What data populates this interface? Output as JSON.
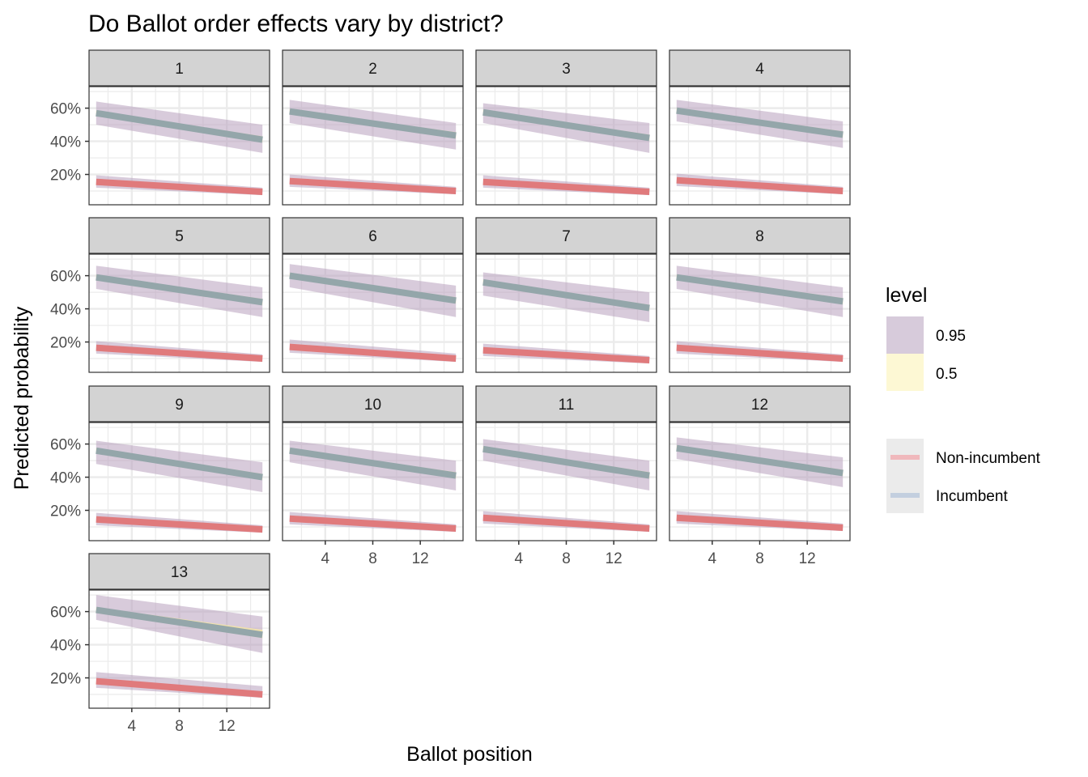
{
  "chart_data": {
    "type": "line",
    "title": "Do Ballot order effects vary by district?",
    "xlabel": "Ballot position",
    "ylabel": "Predicted probability",
    "facet_variable": "district",
    "xlim": [
      0.4,
      15.6
    ],
    "ylim": [
      0.017,
      0.73
    ],
    "x_ticks": [
      4,
      8,
      12
    ],
    "x_tick_labels": [
      "4",
      "8",
      "12"
    ],
    "y_ticks": [
      0.2,
      0.4,
      0.6
    ],
    "y_tick_labels": [
      "20%",
      "40%",
      "60%"
    ],
    "x_minor_grid": [
      2,
      6,
      10,
      14
    ],
    "y_minor_grid": [
      0.1,
      0.3,
      0.5,
      0.7
    ],
    "grid": true,
    "x_range": [
      1,
      15
    ],
    "legend": {
      "position": "right",
      "fill_title": "level",
      "fill_entries": [
        {
          "label": "0.95",
          "color": "#d7cbdb"
        },
        {
          "label": "0.5",
          "color": "#fdf8d4"
        }
      ],
      "color_entries": [
        {
          "label": "Non-incumbent",
          "color": "#f0b8bc"
        },
        {
          "label": "Incumbent",
          "color": "#c3cfdf"
        }
      ]
    },
    "colors": {
      "band95": "#b8a0be",
      "band50": "#f3e3a8",
      "incumbent_line": "#94a6aa",
      "nonincumbent_line": "#e07a7c",
      "strip_bg": "#d3d3d3",
      "grid": "#ebebeb"
    },
    "panels": [
      {
        "label": "1",
        "incumbent": {
          "mean": [
            0.57,
            0.41
          ],
          "lo95": [
            0.5,
            0.33
          ],
          "hi95": [
            0.64,
            0.5
          ],
          "lo50": [
            0.555,
            0.395
          ],
          "hi50": [
            0.585,
            0.43
          ]
        },
        "nonincumbent": {
          "mean": [
            0.155,
            0.095
          ],
          "lo95": [
            0.12,
            0.075
          ],
          "hi95": [
            0.195,
            0.12
          ]
        }
      },
      {
        "label": "2",
        "incumbent": {
          "mean": [
            0.58,
            0.435
          ],
          "lo95": [
            0.51,
            0.35
          ],
          "hi95": [
            0.65,
            0.51
          ],
          "lo50": [
            0.565,
            0.42
          ],
          "hi50": [
            0.595,
            0.455
          ]
        },
        "nonincumbent": {
          "mean": [
            0.16,
            0.1
          ],
          "lo95": [
            0.125,
            0.08
          ],
          "hi95": [
            0.2,
            0.125
          ]
        }
      },
      {
        "label": "3",
        "incumbent": {
          "mean": [
            0.575,
            0.42
          ],
          "lo95": [
            0.51,
            0.33
          ],
          "hi95": [
            0.63,
            0.51
          ],
          "lo50": [
            0.56,
            0.405
          ],
          "hi50": [
            0.59,
            0.44
          ]
        },
        "nonincumbent": {
          "mean": [
            0.155,
            0.095
          ],
          "lo95": [
            0.12,
            0.075
          ],
          "hi95": [
            0.195,
            0.12
          ]
        }
      },
      {
        "label": "4",
        "incumbent": {
          "mean": [
            0.585,
            0.44
          ],
          "lo95": [
            0.52,
            0.36
          ],
          "hi95": [
            0.65,
            0.52
          ],
          "lo50": [
            0.57,
            0.425
          ],
          "hi50": [
            0.6,
            0.46
          ]
        },
        "nonincumbent": {
          "mean": [
            0.165,
            0.1
          ],
          "lo95": [
            0.13,
            0.08
          ],
          "hi95": [
            0.205,
            0.125
          ]
        }
      },
      {
        "label": "5",
        "incumbent": {
          "mean": [
            0.59,
            0.44
          ],
          "lo95": [
            0.52,
            0.35
          ],
          "hi95": [
            0.66,
            0.53
          ],
          "lo50": [
            0.575,
            0.425
          ],
          "hi50": [
            0.605,
            0.46
          ]
        },
        "nonincumbent": {
          "mean": [
            0.165,
            0.1
          ],
          "lo95": [
            0.13,
            0.08
          ],
          "hi95": [
            0.205,
            0.125
          ]
        }
      },
      {
        "label": "6",
        "incumbent": {
          "mean": [
            0.6,
            0.45
          ],
          "lo95": [
            0.53,
            0.35
          ],
          "hi95": [
            0.67,
            0.54
          ],
          "lo50": [
            0.585,
            0.435
          ],
          "hi50": [
            0.615,
            0.47
          ]
        },
        "nonincumbent": {
          "mean": [
            0.17,
            0.1
          ],
          "lo95": [
            0.135,
            0.08
          ],
          "hi95": [
            0.215,
            0.13
          ]
        }
      },
      {
        "label": "7",
        "incumbent": {
          "mean": [
            0.56,
            0.405
          ],
          "lo95": [
            0.48,
            0.32
          ],
          "hi95": [
            0.62,
            0.5
          ],
          "lo50": [
            0.545,
            0.39
          ],
          "hi50": [
            0.575,
            0.425
          ]
        },
        "nonincumbent": {
          "mean": [
            0.15,
            0.09
          ],
          "lo95": [
            0.115,
            0.07
          ],
          "hi95": [
            0.19,
            0.115
          ]
        }
      },
      {
        "label": "8",
        "incumbent": {
          "mean": [
            0.59,
            0.445
          ],
          "lo95": [
            0.52,
            0.35
          ],
          "hi95": [
            0.66,
            0.53
          ],
          "lo50": [
            0.575,
            0.43
          ],
          "hi50": [
            0.605,
            0.465
          ]
        },
        "nonincumbent": {
          "mean": [
            0.165,
            0.1
          ],
          "lo95": [
            0.13,
            0.08
          ],
          "hi95": [
            0.205,
            0.125
          ]
        }
      },
      {
        "label": "9",
        "incumbent": {
          "mean": [
            0.56,
            0.4
          ],
          "lo95": [
            0.48,
            0.31
          ],
          "hi95": [
            0.62,
            0.49
          ],
          "lo50": [
            0.545,
            0.385
          ],
          "hi50": [
            0.575,
            0.42
          ]
        },
        "nonincumbent": {
          "mean": [
            0.145,
            0.085
          ],
          "lo95": [
            0.11,
            0.065
          ],
          "hi95": [
            0.185,
            0.11
          ]
        }
      },
      {
        "label": "10",
        "incumbent": {
          "mean": [
            0.56,
            0.41
          ],
          "lo95": [
            0.49,
            0.32
          ],
          "hi95": [
            0.62,
            0.5
          ],
          "lo50": [
            0.545,
            0.395
          ],
          "hi50": [
            0.575,
            0.43
          ]
        },
        "nonincumbent": {
          "mean": [
            0.15,
            0.09
          ],
          "lo95": [
            0.115,
            0.07
          ],
          "hi95": [
            0.19,
            0.115
          ]
        }
      },
      {
        "label": "11",
        "incumbent": {
          "mean": [
            0.57,
            0.41
          ],
          "lo95": [
            0.5,
            0.32
          ],
          "hi95": [
            0.63,
            0.5
          ],
          "lo50": [
            0.555,
            0.395
          ],
          "hi50": [
            0.585,
            0.43
          ]
        },
        "nonincumbent": {
          "mean": [
            0.155,
            0.09
          ],
          "lo95": [
            0.12,
            0.07
          ],
          "hi95": [
            0.195,
            0.115
          ]
        }
      },
      {
        "label": "12",
        "incumbent": {
          "mean": [
            0.575,
            0.425
          ],
          "lo95": [
            0.51,
            0.34
          ],
          "hi95": [
            0.64,
            0.52
          ],
          "lo50": [
            0.56,
            0.41
          ],
          "hi50": [
            0.59,
            0.445
          ]
        },
        "nonincumbent": {
          "mean": [
            0.155,
            0.095
          ],
          "lo95": [
            0.12,
            0.075
          ],
          "hi95": [
            0.195,
            0.12
          ]
        }
      },
      {
        "label": "13",
        "incumbent": {
          "mean": [
            0.61,
            0.46
          ],
          "lo95": [
            0.55,
            0.35
          ],
          "hi95": [
            0.7,
            0.57
          ],
          "lo50": [
            0.595,
            0.44
          ],
          "hi50": [
            0.625,
            0.49
          ]
        },
        "nonincumbent": {
          "mean": [
            0.18,
            0.1
          ],
          "lo95": [
            0.14,
            0.08
          ],
          "hi95": [
            0.235,
            0.15
          ]
        }
      }
    ]
  }
}
